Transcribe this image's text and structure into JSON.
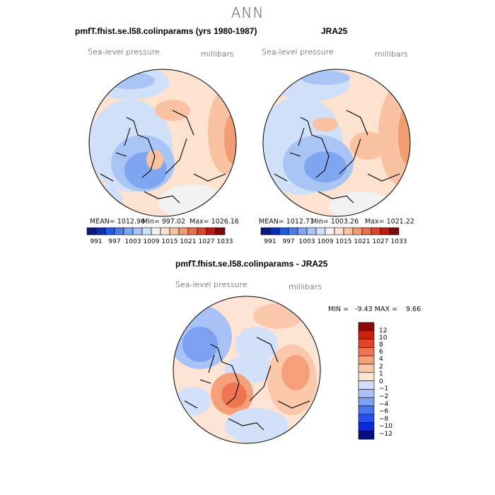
{
  "figure": {
    "title": "ANN"
  },
  "palettes": {
    "abs": [
      "#081d7a",
      "#0b2fb3",
      "#1f5be0",
      "#4a7de8",
      "#7fa6f0",
      "#a9c5f5",
      "#cfe0f8",
      "#f2f2f2",
      "#fde2cf",
      "#f9c2a2",
      "#f29c73",
      "#e97049",
      "#d9442a",
      "#bb1b13",
      "#7d0c08"
    ],
    "diff": [
      "#05107a",
      "#0a2ad6",
      "#2451ea",
      "#4d76ee",
      "#7da0f3",
      "#a9c2f6",
      "#d2e0fa",
      "#fde4d4",
      "#fbc8ab",
      "#f6a07b",
      "#ef7550",
      "#e34624",
      "#cc1f0c",
      "#8b0a06"
    ]
  },
  "chart_data": [
    {
      "type": "heatmap",
      "projection": "polar-stereographic",
      "title": "pmfT.fhist.se.l58.colinparams (yrs 1980-1987)",
      "left_label": "Sea-level pressure",
      "right_label": "millibars",
      "stats": {
        "mean": "MEAN= 1012.96",
        "min": "Min= 997.02",
        "max": "Max= 1026.16"
      },
      "colorbar_ticks": [
        "991",
        "997",
        "1003",
        "1009",
        "1015",
        "1021",
        "1027",
        "1033"
      ],
      "ranges": {
        "mean": 1012.96,
        "min": 997.02,
        "max": 1026.16
      }
    },
    {
      "type": "heatmap",
      "projection": "polar-stereographic",
      "title": "JRA25",
      "left_label": "Sea-level pressure",
      "right_label": "millibars",
      "stats": {
        "mean": "MEAN= 1012.71",
        "min": "Min= 1003.26",
        "max": "Max= 1021.22"
      },
      "colorbar_ticks": [
        "991",
        "997",
        "1003",
        "1009",
        "1015",
        "1021",
        "1027",
        "1033"
      ],
      "ranges": {
        "mean": 1012.71,
        "min": 1003.26,
        "max": 1021.22
      }
    },
    {
      "type": "heatmap",
      "projection": "polar-stereographic",
      "title": "pmfT.fhist.se.l58.colinparams - JRA25",
      "left_label": "Sea-level pressure",
      "right_label": "millibars",
      "stats_line": "MIN =   -9.43 MAX =    9.66",
      "ranges": {
        "min": -9.43,
        "max": 9.66
      },
      "colorbar_ticks": [
        "12",
        "10",
        "8",
        "6",
        "4",
        "2",
        "1",
        "0",
        "−1",
        "−2",
        "−4",
        "−6",
        "−8",
        "−10",
        "−12"
      ]
    }
  ]
}
